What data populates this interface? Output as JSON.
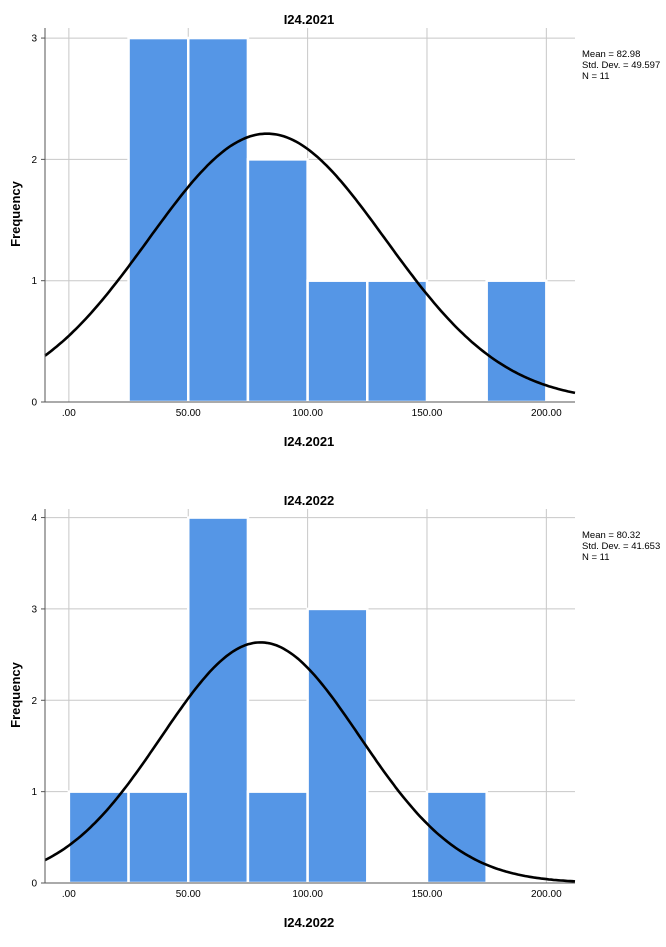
{
  "chart_data": [
    {
      "type": "bar",
      "title": "I24.2021",
      "xlabel": "I24.2021",
      "ylabel": "Frequency",
      "bin_edges": [
        0,
        25,
        50,
        75,
        100,
        125,
        150,
        175,
        200
      ],
      "values": [
        0,
        3,
        3,
        2,
        1,
        1,
        0,
        1
      ],
      "xlim": [
        -10,
        212
      ],
      "ylim": [
        0,
        3.05
      ],
      "x_ticks": [
        0,
        50,
        100,
        150,
        200
      ],
      "x_tick_labels": [
        ".00",
        "50.00",
        "100.00",
        "150.00",
        "200.00"
      ],
      "y_ticks": [
        0,
        1,
        2,
        3
      ],
      "y_tick_labels": [
        "0",
        "1",
        "2",
        "3"
      ],
      "stats": {
        "mean_label": "Mean = 82.98",
        "sd_label": "Std. Dev. = 49.597",
        "n_label": "N = 11"
      },
      "normal_curve": {
        "mean": 82.98,
        "sd": 49.597,
        "n": 11,
        "bin_width": 25
      },
      "grid": true,
      "legend": "top-right"
    },
    {
      "type": "bar",
      "title": "I24.2022",
      "xlabel": "I24.2022",
      "ylabel": "Frequency",
      "bin_edges": [
        0,
        25,
        50,
        75,
        100,
        125,
        150,
        175,
        200
      ],
      "values": [
        1,
        1,
        4,
        1,
        3,
        0,
        1,
        0
      ],
      "xlim": [
        -10,
        212
      ],
      "ylim": [
        0,
        4.05
      ],
      "x_ticks": [
        0,
        50,
        100,
        150,
        200
      ],
      "x_tick_labels": [
        ".00",
        "50.00",
        "100.00",
        "150.00",
        "200.00"
      ],
      "y_ticks": [
        0,
        1,
        2,
        3,
        4
      ],
      "y_tick_labels": [
        "0",
        "1",
        "2",
        "3",
        "4"
      ],
      "stats": {
        "mean_label": "Mean = 80.32",
        "sd_label": "Std. Dev. = 41.653",
        "n_label": "N = 11"
      },
      "normal_curve": {
        "mean": 80.32,
        "sd": 41.653,
        "n": 11,
        "bin_width": 25
      },
      "grid": true,
      "legend": "top-right"
    }
  ]
}
